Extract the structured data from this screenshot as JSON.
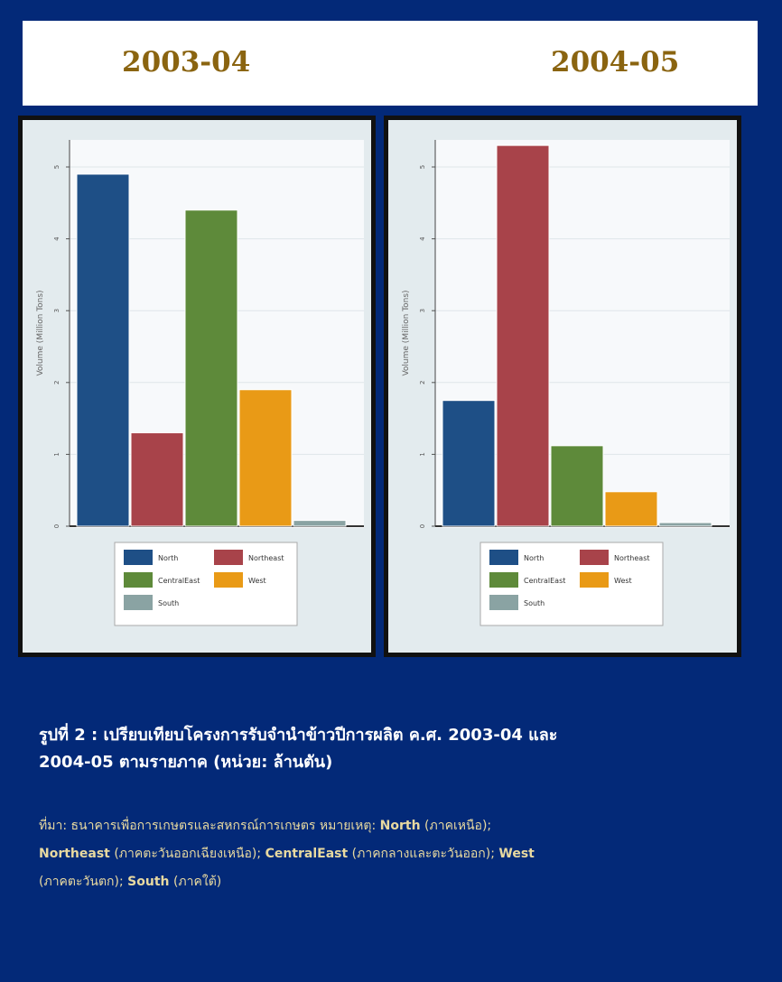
{
  "header": {
    "year_left": "2003-04",
    "year_right": "2004-05"
  },
  "chart_data": [
    {
      "type": "bar",
      "title": "2003-04",
      "ylabel": "Volume (Million Tons)",
      "ylim": [
        0,
        5
      ],
      "yticks": [
        "0",
        "1",
        "2",
        "3",
        "4",
        "5"
      ],
      "categories": [
        "North",
        "Northeast",
        "CentralEast",
        "West",
        "South"
      ],
      "values": [
        4.9,
        1.3,
        4.4,
        1.9,
        0.08
      ],
      "colors": [
        "#1e4f86",
        "#a8434a",
        "#5e8a3a",
        "#e99a16",
        "#8aa3a3"
      ],
      "legend": [
        "North",
        "Northeast",
        "CentralEast",
        "West",
        "South"
      ],
      "grid": true,
      "legend_position": "bottom"
    },
    {
      "type": "bar",
      "title": "2004-05",
      "ylabel": "Volume (Million Tons)",
      "ylim": [
        0,
        5
      ],
      "yticks": [
        "0",
        "1",
        "2",
        "3",
        "4",
        "5"
      ],
      "categories": [
        "North",
        "Northeast",
        "CentralEast",
        "West",
        "South"
      ],
      "values": [
        1.75,
        5.3,
        1.12,
        0.48,
        0.05
      ],
      "colors": [
        "#1e4f86",
        "#a8434a",
        "#5e8a3a",
        "#e99a16",
        "#8aa3a3"
      ],
      "legend": [
        "North",
        "Northeast",
        "CentralEast",
        "West",
        "South"
      ],
      "grid": true,
      "legend_position": "bottom"
    }
  ],
  "caption": {
    "line1": "รูปที่ 2 : เปรียบเทียบโครงการรับจำนำข้าวปีการผลิต ค.ศ. 2003-04 และ",
    "line2": "2004-05 ตามรายภาค (หน่วย: ล้านตัน)"
  },
  "source": {
    "t1": "ที่มา: ธนาคารเพื่อการเกษตรและสหกรณ์การเกษตร หมายเหตุ: ",
    "north": "North",
    "t2": " (ภาคเหนือ);",
    "northeast": "Northeast",
    "t3": " (ภาคตะวันออกเฉียงเหนือ); ",
    "centraleast": "CentralEast",
    "t4": " (ภาคกลางและตะวันออก); ",
    "west": "West",
    "t5": "(ภาคตะวันตก); ",
    "south": "South",
    "t6": " (ภาคใต้)"
  }
}
